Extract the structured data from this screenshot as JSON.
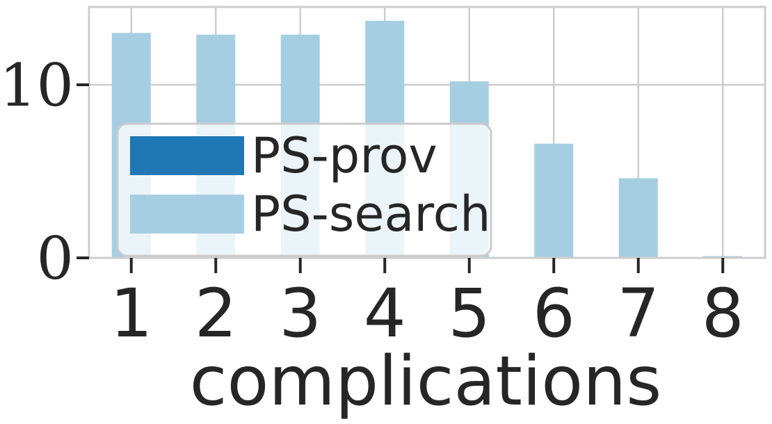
{
  "chart_data": {
    "type": "bar",
    "categories": [
      "1",
      "2",
      "3",
      "4",
      "5",
      "6",
      "7",
      "8"
    ],
    "series": [
      {
        "name": "PS-prov",
        "color": "#1f78b4",
        "values": [
          0,
          0,
          0,
          0,
          0,
          0,
          0,
          0
        ]
      },
      {
        "name": "PS-search",
        "color": "#a6cee3",
        "values": [
          13.0,
          12.9,
          12.9,
          13.7,
          10.2,
          6.6,
          4.6,
          0.1
        ]
      }
    ],
    "title": "",
    "xlabel": "complications",
    "ylabel": "",
    "ylim": [
      0,
      14.5
    ],
    "yticks": [
      0,
      10
    ],
    "grid": true,
    "legend_position": "lower-left"
  }
}
